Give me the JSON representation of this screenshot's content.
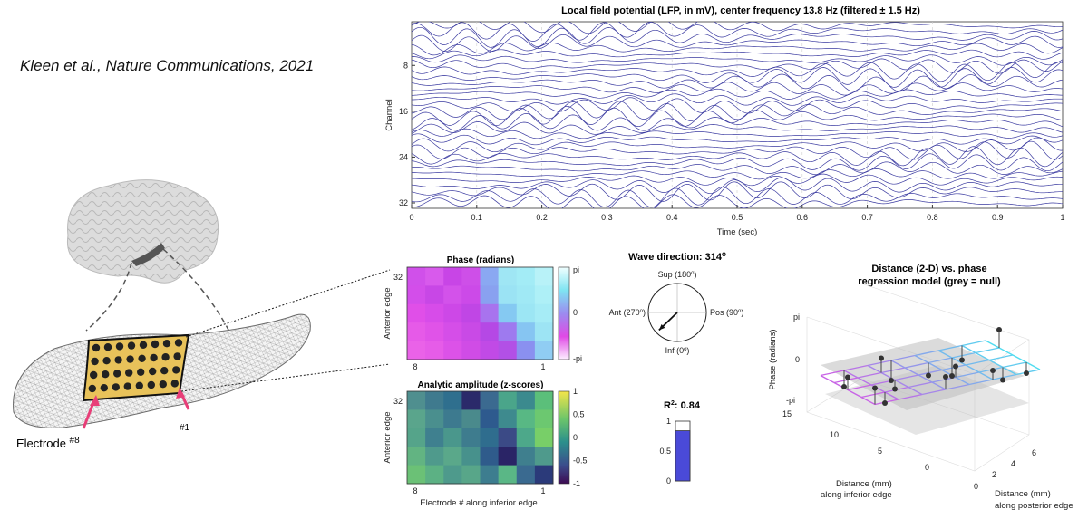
{
  "citation": {
    "authors": "Kleen et al.,",
    "journal": "Nature Communications",
    "year": ", 2021"
  },
  "brain": {
    "electrode_left_label": "Electrode",
    "electrode_left_num": "#8",
    "electrode_right_num": "#1"
  },
  "lfp": {
    "title": "Local field potential (LFP, in mV), center frequency 13.8 Hz (filtered ± 1.5 Hz)",
    "xlabel": "Time (sec)",
    "ylabel": "Channel",
    "xticks": [
      "0",
      "0.1",
      "0.2",
      "0.3",
      "0.4",
      "0.5",
      "0.6",
      "0.7",
      "0.8",
      "0.9",
      "1"
    ],
    "yticks": [
      "8",
      "16",
      "24",
      "32"
    ],
    "line_color": "#3a3aa0"
  },
  "phase_map": {
    "title": "Phase (radians)",
    "ylabel": "Anterior edge",
    "ytick": "32",
    "xtick_left": "8",
    "xtick_right": "1",
    "cb_top": "pi",
    "cb_mid": "0",
    "cb_bot": "-pi"
  },
  "amp_map": {
    "title": "Analytic amplitude (z-scores)",
    "ylabel": "Anterior edge",
    "ytick": "32",
    "xtick_left": "8",
    "xtick_right": "1",
    "xlabel": "Electrode # along inferior edge",
    "cb_ticks": [
      "1",
      "0.5",
      "0",
      "-0.5",
      "-1"
    ]
  },
  "wave": {
    "title": "Wave direction: 314",
    "deg": "o",
    "sup": "Sup (180",
    "pos": "Pos (90",
    "ant": "Ant (270",
    "inf": "Inf (0",
    "close": ")",
    "angle_deg": 314
  },
  "r2": {
    "label": "R",
    "sup": "2",
    "value": ": 0.84",
    "ticks": [
      "1",
      "0.5",
      "0"
    ],
    "fraction": 0.84,
    "bar_color": "#4a4ad8"
  },
  "regression": {
    "title_line1": "Distance (2-D) vs. phase",
    "title_line2": "regression model (grey = null)",
    "zlabel": "Phase (radians)",
    "zticks": [
      "pi",
      "0",
      "-pi"
    ],
    "inferior_ticks": [
      "15",
      "10",
      "5",
      "0"
    ],
    "posterior_ticks": [
      "0",
      "2",
      "4",
      "6"
    ],
    "inferior_label_1": "Distance (mm)",
    "inferior_label_2": "along inferior edge",
    "posterior_label_1": "Distance (mm)",
    "posterior_label_2": "along posterior edge"
  }
}
